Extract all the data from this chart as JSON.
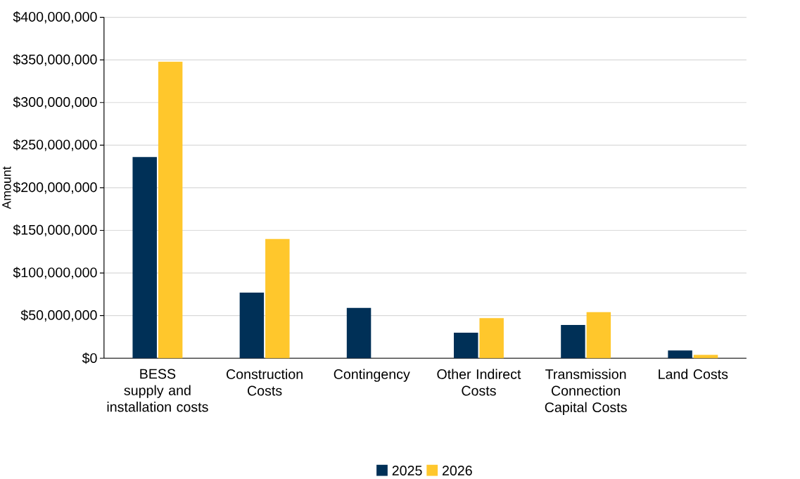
{
  "chart_data": {
    "type": "bar",
    "ylabel": "Amount",
    "categories": [
      "BESS supply and installation costs",
      "Construction Costs",
      "Contingency",
      "Other Indirect Costs",
      "Transmission Connection Capital Costs",
      "Land Costs"
    ],
    "series": [
      {
        "name": "2025",
        "color": "#003057",
        "values": [
          236000000,
          77000000,
          59000000,
          30000000,
          39000000,
          9000000
        ]
      },
      {
        "name": "2026",
        "color": "#ffc72c",
        "values": [
          348000000,
          140000000,
          null,
          47000000,
          54000000,
          4000000
        ]
      }
    ],
    "ylim": [
      0,
      400000000
    ],
    "yticks": [
      {
        "value": 0,
        "label": "$0"
      },
      {
        "value": 50000000,
        "label": "$50,000,000"
      },
      {
        "value": 100000000,
        "label": "$100,000,000"
      },
      {
        "value": 150000000,
        "label": "$150,000,000"
      },
      {
        "value": 200000000,
        "label": "$200,000,000"
      },
      {
        "value": 250000000,
        "label": "$250,000,000"
      },
      {
        "value": 300000000,
        "label": "$300,000,000"
      },
      {
        "value": 350000000,
        "label": "$350,000,000"
      },
      {
        "value": 400000000,
        "label": "$400,000,000"
      }
    ],
    "grid": "y",
    "legend": "bottom"
  }
}
